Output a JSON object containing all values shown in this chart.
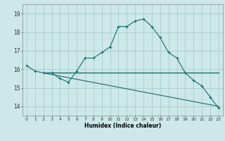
{
  "title": "",
  "xlabel": "Humidex (Indice chaleur)",
  "bg_color": "#cce8e8",
  "grid_color": "#aacccc",
  "line_color": "#1a6b6b",
  "series1": {
    "x": [
      0,
      1,
      2,
      3,
      4,
      5,
      6,
      7,
      8,
      9,
      10,
      11,
      12,
      13,
      14,
      15,
      16,
      17,
      18,
      19,
      20,
      21,
      22,
      23
    ],
    "y": [
      16.2,
      15.9,
      15.8,
      15.8,
      15.5,
      15.3,
      15.9,
      16.6,
      16.6,
      16.9,
      17.2,
      18.3,
      18.3,
      18.6,
      18.7,
      18.3,
      17.7,
      16.9,
      16.6,
      15.8,
      15.4,
      15.1,
      14.5,
      13.9
    ]
  },
  "series2": {
    "x": [
      2,
      23
    ],
    "y": [
      15.8,
      15.8
    ]
  },
  "series3": {
    "x": [
      2,
      23
    ],
    "y": [
      15.8,
      14.0
    ]
  },
  "ylim": [
    13.5,
    19.5
  ],
  "yticks": [
    14,
    15,
    16,
    17,
    18,
    19
  ],
  "xticks": [
    0,
    1,
    2,
    3,
    4,
    5,
    6,
    7,
    8,
    9,
    10,
    11,
    12,
    13,
    14,
    15,
    16,
    17,
    18,
    19,
    20,
    21,
    22,
    23
  ],
  "xlim": [
    -0.5,
    23.5
  ]
}
